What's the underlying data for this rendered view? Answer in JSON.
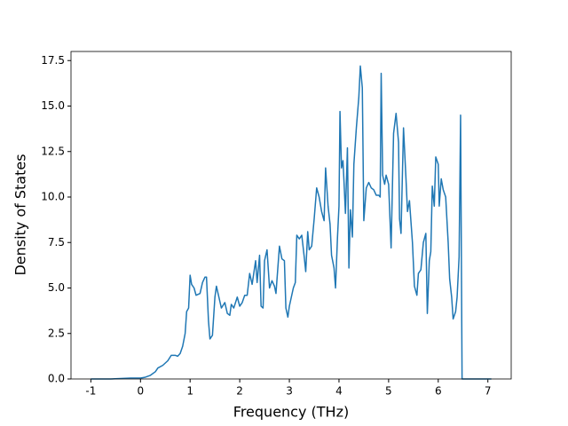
{
  "chart_data": {
    "type": "line",
    "xlabel": "Frequency (THz)",
    "ylabel": "Density of States",
    "x": [
      -1,
      -0.6,
      -0.2,
      0,
      0.1,
      0.2,
      0.3,
      0.35,
      0.45,
      0.55,
      0.62,
      0.7,
      0.75,
      0.8,
      0.85,
      0.9,
      0.93,
      0.97,
      1.0,
      1.03,
      1.08,
      1.12,
      1.2,
      1.25,
      1.3,
      1.33,
      1.37,
      1.4,
      1.45,
      1.5,
      1.53,
      1.58,
      1.63,
      1.7,
      1.75,
      1.8,
      1.83,
      1.88,
      1.95,
      2.0,
      2.05,
      2.1,
      2.15,
      2.2,
      2.25,
      2.32,
      2.35,
      2.4,
      2.43,
      2.47,
      2.5,
      2.55,
      2.6,
      2.65,
      2.7,
      2.73,
      2.8,
      2.85,
      2.9,
      2.93,
      2.97,
      3.0,
      3.08,
      3.12,
      3.15,
      3.2,
      3.25,
      3.3,
      3.33,
      3.37,
      3.4,
      3.45,
      3.5,
      3.55,
      3.6,
      3.65,
      3.7,
      3.73,
      3.78,
      3.82,
      3.85,
      3.9,
      3.93,
      3.97,
      4.0,
      4.02,
      4.05,
      4.08,
      4.1,
      4.13,
      4.17,
      4.2,
      4.23,
      4.27,
      4.3,
      4.35,
      4.4,
      4.43,
      4.47,
      4.5,
      4.55,
      4.6,
      4.65,
      4.7,
      4.75,
      4.8,
      4.83,
      4.85,
      4.88,
      4.92,
      4.95,
      5.0,
      5.05,
      5.1,
      5.15,
      5.2,
      5.22,
      5.25,
      5.3,
      5.35,
      5.38,
      5.42,
      5.48,
      5.52,
      5.57,
      5.6,
      5.65,
      5.7,
      5.75,
      5.78,
      5.82,
      5.85,
      5.88,
      5.92,
      5.95,
      6.0,
      6.02,
      6.06,
      6.1,
      6.15,
      6.2,
      6.23,
      6.27,
      6.3,
      6.35,
      6.38,
      6.42,
      6.45,
      6.48,
      6.55,
      7.07
    ],
    "series": [
      {
        "name": "DOS",
        "color": "#1f77b4",
        "values": [
          0,
          0,
          0.05,
          0.05,
          0.1,
          0.2,
          0.4,
          0.6,
          0.75,
          1.0,
          1.3,
          1.3,
          1.25,
          1.4,
          1.8,
          2.5,
          3.7,
          3.9,
          5.7,
          5.2,
          5.0,
          4.6,
          4.7,
          5.3,
          5.6,
          5.6,
          3.2,
          2.2,
          2.4,
          4.5,
          5.1,
          4.5,
          3.9,
          4.2,
          3.6,
          3.5,
          4.1,
          3.9,
          4.5,
          4.0,
          4.2,
          4.6,
          4.6,
          5.8,
          5.2,
          6.5,
          5.3,
          6.8,
          4.0,
          3.9,
          6.5,
          7.1,
          5.0,
          5.4,
          5.1,
          4.7,
          7.3,
          6.6,
          6.5,
          3.9,
          3.4,
          4.0,
          5.0,
          5.3,
          7.9,
          7.7,
          7.9,
          6.7,
          5.9,
          8.1,
          7.1,
          7.3,
          8.8,
          10.5,
          10.0,
          9.2,
          8.7,
          11.6,
          9.5,
          8.5,
          6.8,
          6.1,
          5.0,
          7.8,
          9.5,
          14.7,
          11.6,
          12.0,
          10.9,
          9.1,
          12.7,
          6.1,
          9.3,
          7.8,
          11.8,
          13.8,
          15.5,
          17.2,
          16.0,
          8.7,
          10.5,
          10.8,
          10.5,
          10.4,
          10.1,
          10.1,
          10.0,
          16.8,
          11.2,
          10.7,
          11.2,
          10.7,
          7.2,
          13.5,
          14.6,
          13.0,
          8.8,
          8.0,
          13.8,
          11.0,
          9.2,
          9.8,
          7.5,
          5.1,
          4.6,
          5.8,
          6.0,
          7.5,
          8.0,
          3.6,
          6.5,
          7.0,
          10.6,
          9.5,
          12.2,
          11.8,
          9.5,
          11.0,
          10.4,
          10.0,
          7.5,
          5.5,
          4.5,
          3.3,
          3.7,
          4.5,
          6.7,
          14.5,
          0,
          0,
          0
        ]
      }
    ],
    "xlim": [
      -1.4,
      7.47
    ],
    "ylim": [
      0,
      18
    ],
    "xticks": [
      -1,
      0,
      1,
      2,
      3,
      4,
      5,
      6,
      7
    ],
    "yticks": [
      {
        "value": 0,
        "label": "0.0"
      },
      {
        "value": 2.5,
        "label": "2.5"
      },
      {
        "value": 5,
        "label": "5.0"
      },
      {
        "value": 7.5,
        "label": "7.5"
      },
      {
        "value": 10,
        "label": "10.0"
      },
      {
        "value": 12.5,
        "label": "12.5"
      },
      {
        "value": 15,
        "label": "15.0"
      },
      {
        "value": 17.5,
        "label": "17.5"
      }
    ],
    "grid": false
  }
}
